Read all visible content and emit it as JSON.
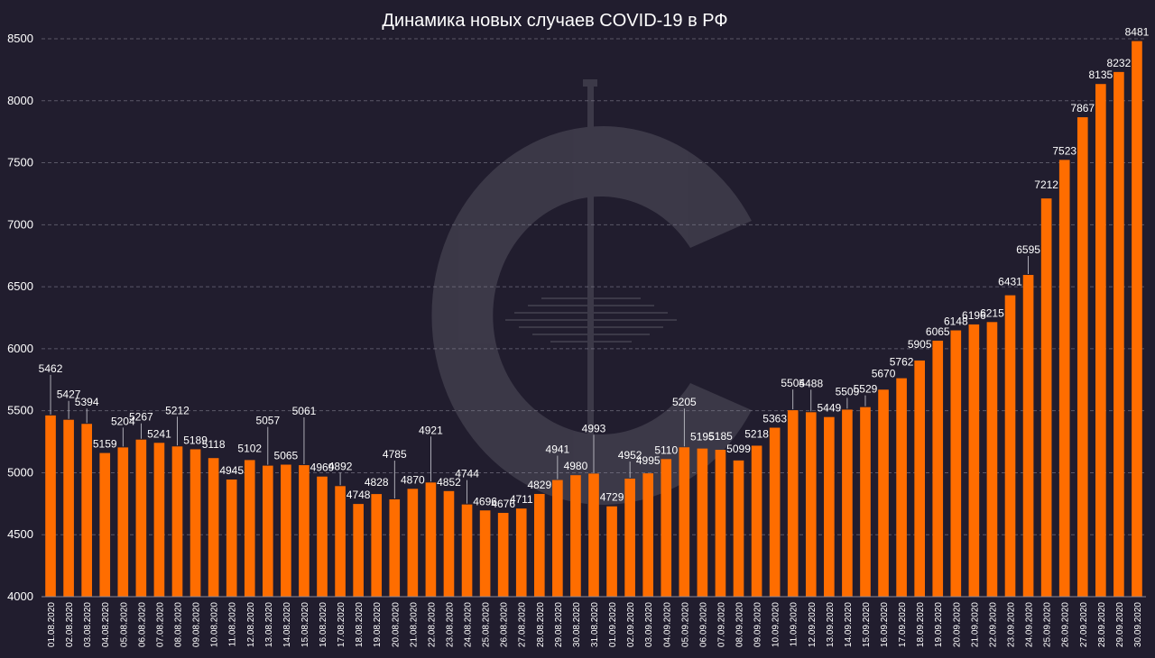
{
  "chart_data": {
    "type": "bar",
    "title": "Динамика новых случаев COVID-19 в РФ",
    "xlabel": "",
    "ylabel": "",
    "ylim": [
      4000,
      8500
    ],
    "yticks": [
      4000,
      4500,
      5000,
      5500,
      6000,
      6500,
      7000,
      7500,
      8000,
      8500
    ],
    "grid": true,
    "legend": "none",
    "bar_color": "#ff6d00",
    "background_color": "#211d2e",
    "categories": [
      "01.08.2020",
      "02.08.2020",
      "03.08.2020",
      "04.08.2020",
      "05.08.2020",
      "06.08.2020",
      "07.08.2020",
      "08.08.2020",
      "09.08.2020",
      "10.08.2020",
      "11.08.2020",
      "12.08.2020",
      "13.08.2020",
      "14.08.2020",
      "15.08.2020",
      "16.08.2020",
      "17.08.2020",
      "18.08.2020",
      "19.08.2020",
      "20.08.2020",
      "21.08.2020",
      "22.08.2020",
      "23.08.2020",
      "24.08.2020",
      "25.08.2020",
      "26.08.2020",
      "27.08.2020",
      "28.08.2020",
      "29.08.2020",
      "30.08.2020",
      "31.08.2020",
      "01.09.2020",
      "02.09.2020",
      "03.09.2020",
      "04.09.2020",
      "05.09.2020",
      "06.09.2020",
      "07.09.2020",
      "08.09.2020",
      "09.09.2020",
      "10.09.2020",
      "11.09.2020",
      "12.09.2020",
      "13.09.2020",
      "14.09.2020",
      "15.09.2020",
      "16.09.2020",
      "17.09.2020",
      "18.09.2020",
      "19.09.2020",
      "20.09.2020",
      "21.09.2020",
      "22.09.2020",
      "23.09.2020",
      "24.09.2020",
      "25.09.2020",
      "26.09.2020",
      "27.09.2020",
      "28.09.2020",
      "29.09.2020",
      "30.09.2020"
    ],
    "values": [
      5462,
      5427,
      5394,
      5159,
      5204,
      5267,
      5241,
      5212,
      5189,
      5118,
      4945,
      5102,
      5057,
      5065,
      5061,
      4969,
      4892,
      4748,
      4828,
      4785,
      4870,
      4921,
      4852,
      4744,
      4696,
      4676,
      4711,
      4829,
      4941,
      4980,
      4993,
      4729,
      4952,
      4995,
      5110,
      5205,
      5195,
      5185,
      5099,
      5218,
      5363,
      5504,
      5488,
      5449,
      5509,
      5529,
      5670,
      5762,
      5905,
      6065,
      6148,
      6196,
      6215,
      6431,
      6595,
      7212,
      7523,
      7867,
      8135,
      8232,
      8481
    ]
  }
}
